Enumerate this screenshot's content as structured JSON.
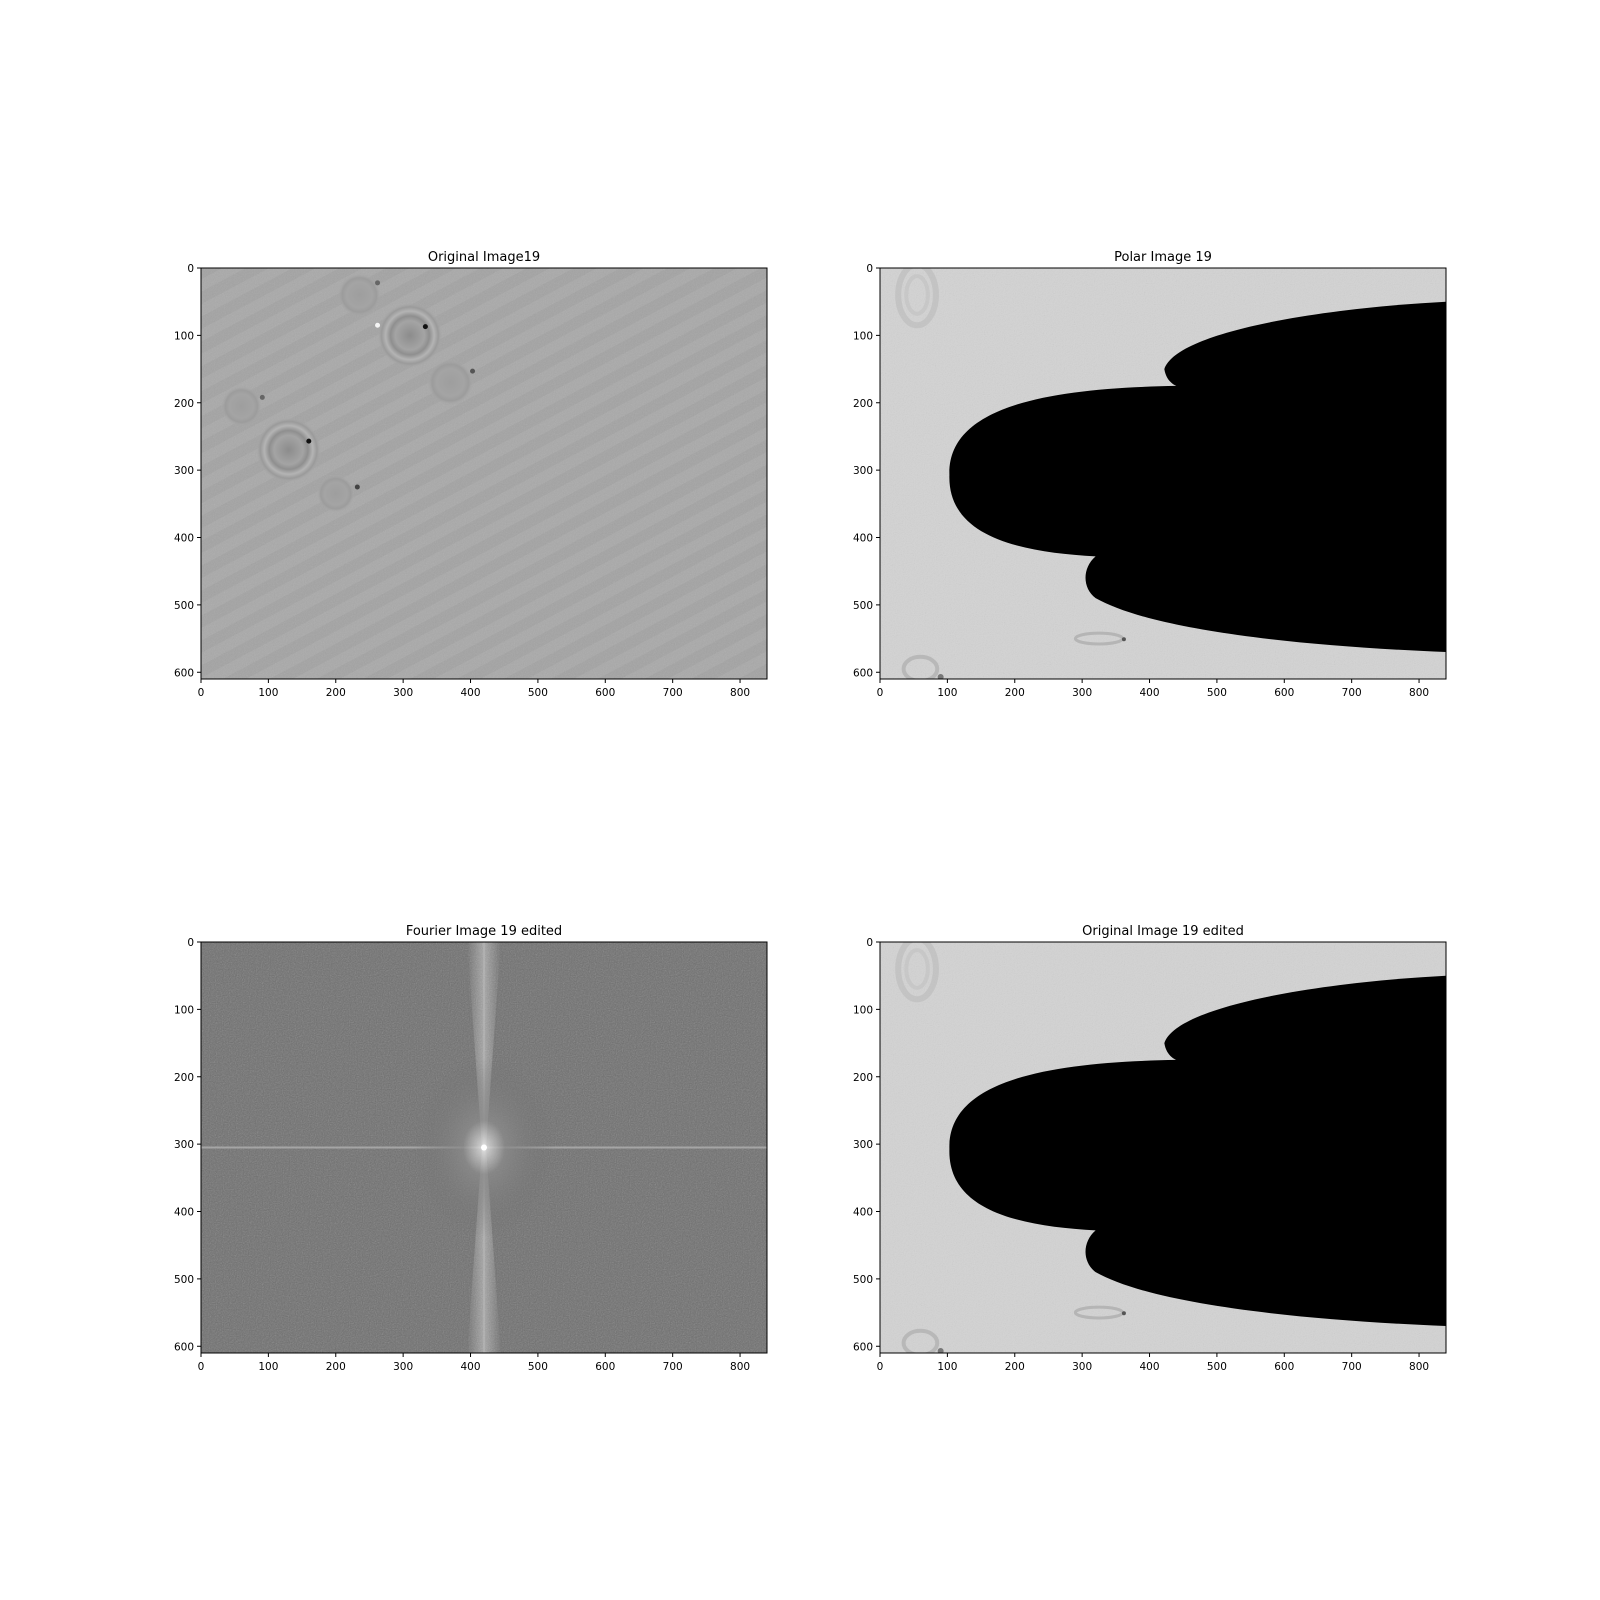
{
  "panels": [
    {
      "title": "Original Image19",
      "kind": "original",
      "xticks": [
        "0",
        "100",
        "200",
        "300",
        "400",
        "500",
        "600",
        "700",
        "800"
      ],
      "yticks": [
        "0",
        "100",
        "200",
        "300",
        "400",
        "500",
        "600"
      ],
      "xlim": [
        0,
        840
      ],
      "ylim": [
        610,
        0
      ]
    },
    {
      "title": "Polar Image 19",
      "kind": "polar",
      "xticks": [
        "0",
        "100",
        "200",
        "300",
        "400",
        "500",
        "600",
        "700",
        "800"
      ],
      "yticks": [
        "0",
        "100",
        "200",
        "300",
        "400",
        "500",
        "600"
      ],
      "xlim": [
        0,
        840
      ],
      "ylim": [
        610,
        0
      ]
    },
    {
      "title": "Fourier Image 19 edited",
      "kind": "fourier",
      "xticks": [
        "0",
        "100",
        "200",
        "300",
        "400",
        "500",
        "600",
        "700",
        "800"
      ],
      "yticks": [
        "0",
        "100",
        "200",
        "300",
        "400",
        "500",
        "600"
      ],
      "xlim": [
        0,
        840
      ],
      "ylim": [
        610,
        0
      ]
    },
    {
      "title": "Original Image 19 edited",
      "kind": "polar",
      "xticks": [
        "0",
        "100",
        "200",
        "300",
        "400",
        "500",
        "600",
        "700",
        "800"
      ],
      "yticks": [
        "0",
        "100",
        "200",
        "300",
        "400",
        "500",
        "600"
      ],
      "xlim": [
        0,
        840
      ],
      "ylim": [
        610,
        0
      ]
    }
  ],
  "colors": {
    "original_bg": "#a9a9a9",
    "polar_bg": "#d3d3d3",
    "polar_mask": "#000000",
    "fourier_bg": "#6e6e6e",
    "fourier_peak": "#ffffff"
  }
}
